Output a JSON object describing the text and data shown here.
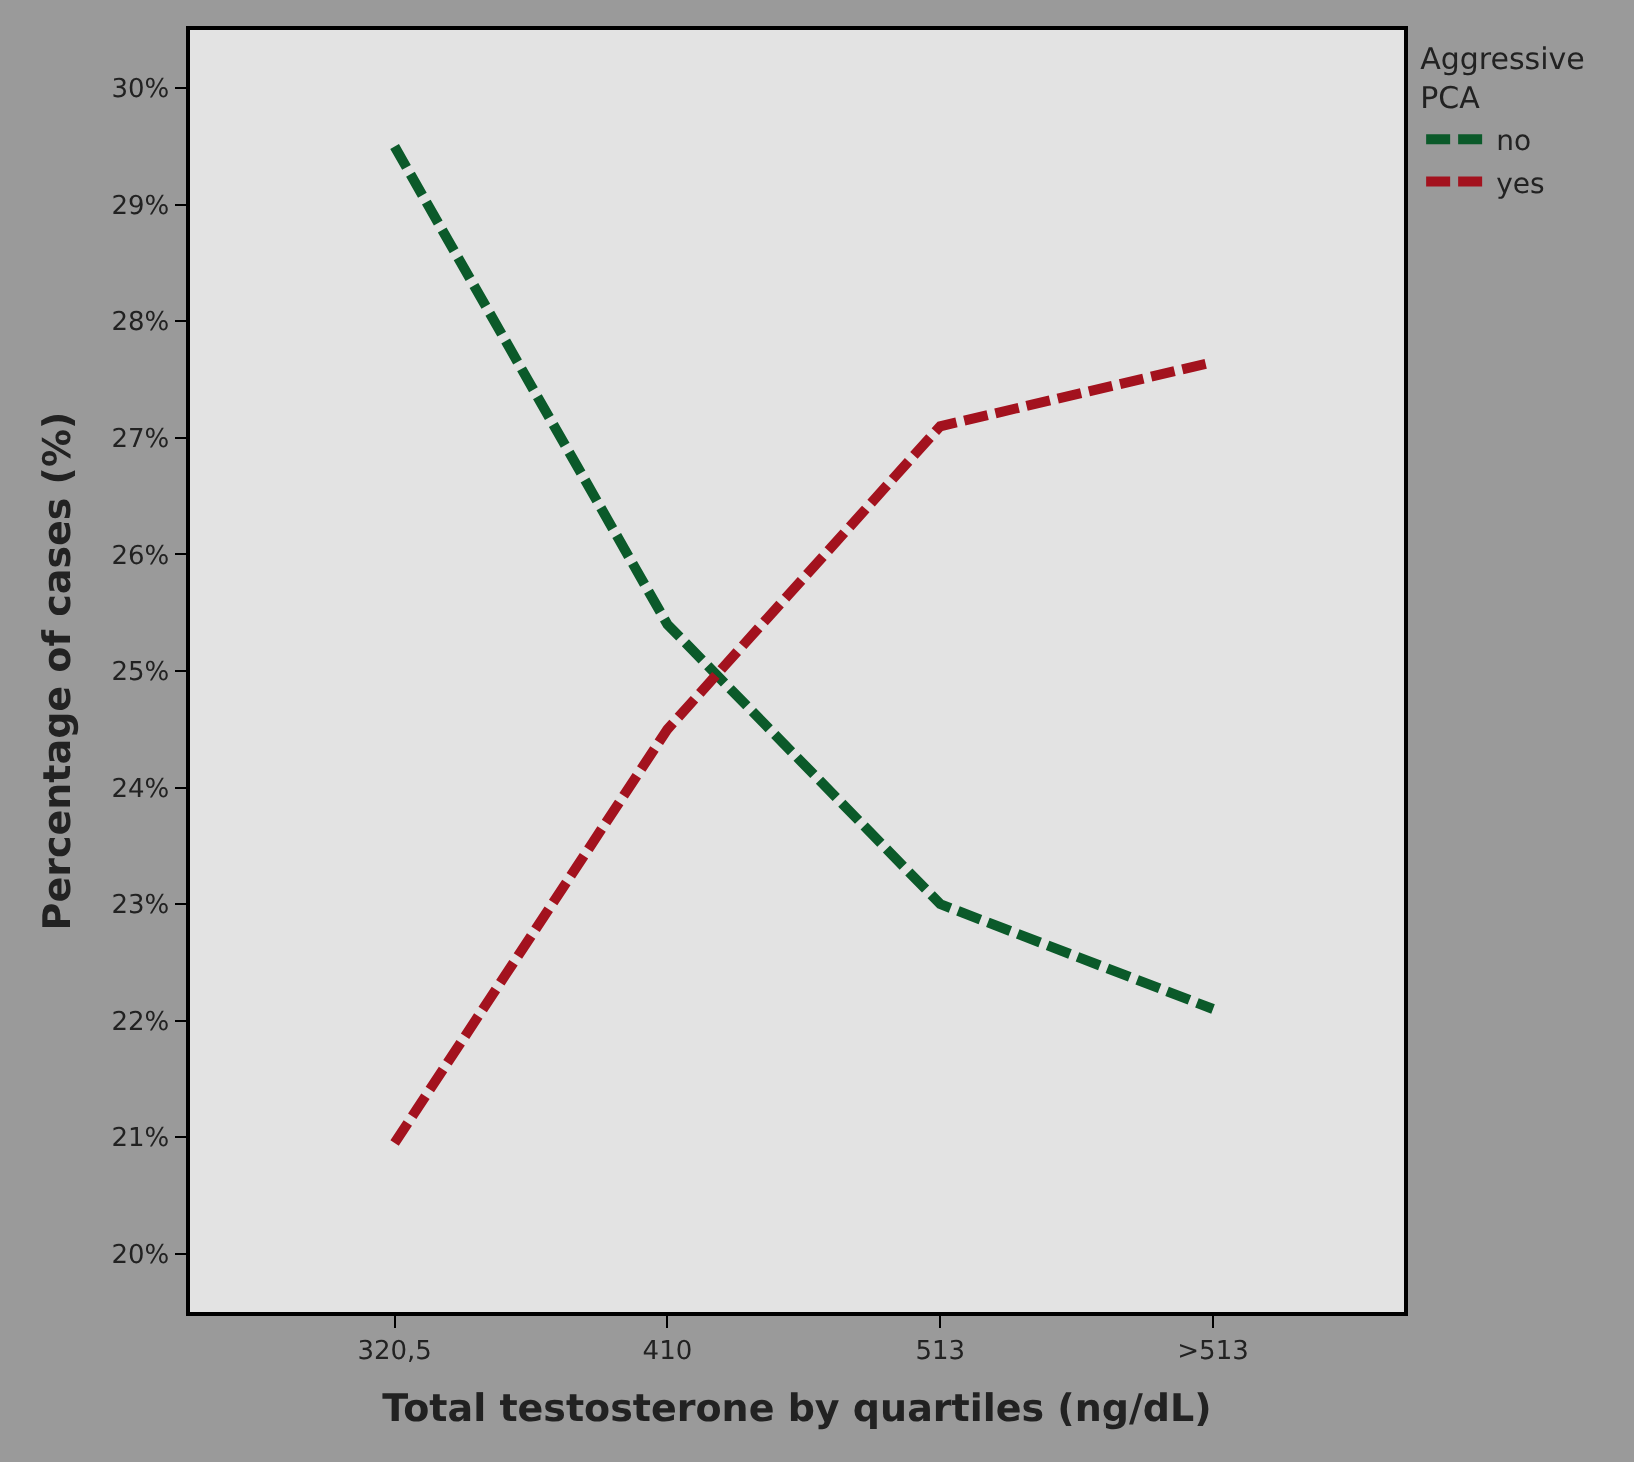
{
  "chart_data": {
    "type": "line",
    "xlabel": "Total testosterone by quartiles (ng/dL)",
    "ylabel": "Percentage of cases (%)",
    "legend_title": "Aggressive PCA",
    "categories": [
      "320,5",
      "410",
      "513",
      ">513"
    ],
    "series": [
      {
        "name": "no",
        "color": "#0b5a2a",
        "values": [
          29.5,
          25.4,
          23.0,
          22.1
        ]
      },
      {
        "name": "yes",
        "color": "#a3121e",
        "values": [
          20.95,
          24.5,
          27.1,
          27.65
        ]
      }
    ],
    "ylim": [
      19.5,
      30.5
    ],
    "yticks": [
      {
        "value": 20,
        "label": "20%"
      },
      {
        "value": 21,
        "label": "21%"
      },
      {
        "value": 22,
        "label": "22%"
      },
      {
        "value": 23,
        "label": "23%"
      },
      {
        "value": 24,
        "label": "24%"
      },
      {
        "value": 25,
        "label": "25%"
      },
      {
        "value": 26,
        "label": "26%"
      },
      {
        "value": 27,
        "label": "27%"
      },
      {
        "value": 28,
        "label": "28%"
      },
      {
        "value": 29,
        "label": "29%"
      },
      {
        "value": 30,
        "label": "30%"
      }
    ],
    "grid": false,
    "legend": "top right",
    "marker": "none",
    "line_style": "dashed"
  }
}
